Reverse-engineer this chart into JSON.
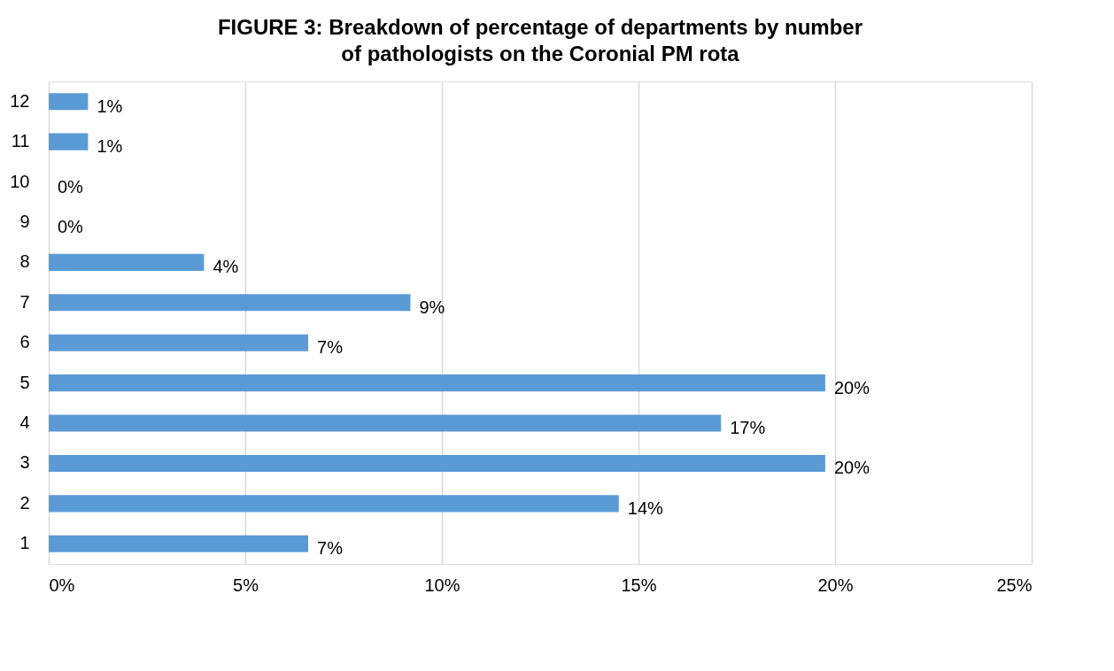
{
  "chart_data": {
    "type": "bar",
    "orientation": "horizontal",
    "title": "FIGURE 3: Breakdown of percentage of departments by number of pathologists on the Coronial PM rota",
    "categories": [
      "12",
      "11",
      "10",
      "9",
      "8",
      "7",
      "6",
      "5",
      "4",
      "3",
      "2",
      "1"
    ],
    "values": [
      1.0,
      1.0,
      0,
      0,
      3.95,
      9.2,
      6.6,
      19.75,
      17.1,
      19.75,
      14.5,
      6.6
    ],
    "value_labels": [
      "1%",
      "1%",
      "0%",
      "0%",
      "4%",
      "9%",
      "7%",
      "20%",
      "17%",
      "20%",
      "14%",
      "7%"
    ],
    "color": "#5b9bd5",
    "xlim": [
      0,
      25
    ],
    "xticks": [
      {
        "value": 0,
        "label": "0%"
      },
      {
        "value": 5,
        "label": "5%"
      },
      {
        "value": 10,
        "label": "10%"
      },
      {
        "value": 15,
        "label": "15%"
      },
      {
        "value": 20,
        "label": "20%"
      },
      {
        "value": 25,
        "label": "25%"
      }
    ],
    "grid": "x"
  }
}
